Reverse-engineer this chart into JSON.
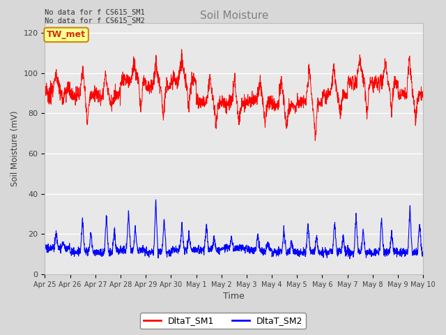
{
  "title": "Soil Moisture",
  "ylabel": "Soil Moisture (mV)",
  "xlabel": "Time",
  "yticks": [
    0,
    20,
    40,
    60,
    80,
    100,
    120
  ],
  "ylim": [
    0,
    125
  ],
  "xtick_labels": [
    "Apr 25",
    "Apr 26",
    "Apr 27",
    "Apr 28",
    "Apr 29",
    "Apr 30",
    "May 1",
    "May 2",
    "May 3",
    "May 4",
    "May 5",
    "May 6",
    "May 7",
    "May 8",
    "May 9",
    "May 10"
  ],
  "sm1_color": "#ff0000",
  "sm2_color": "#0000ff",
  "annotation_text": "No data for f CS615_SM1\nNo data for f CS615_SM2",
  "annotation_box": "TW_met",
  "legend_sm1": "DltaT_SM1",
  "legend_sm2": "DltaT_SM2",
  "background_color": "#d8d8d8",
  "plot_bg_color": "#e8e8e8",
  "grid_color": "#ffffff",
  "title_color": "#808080"
}
